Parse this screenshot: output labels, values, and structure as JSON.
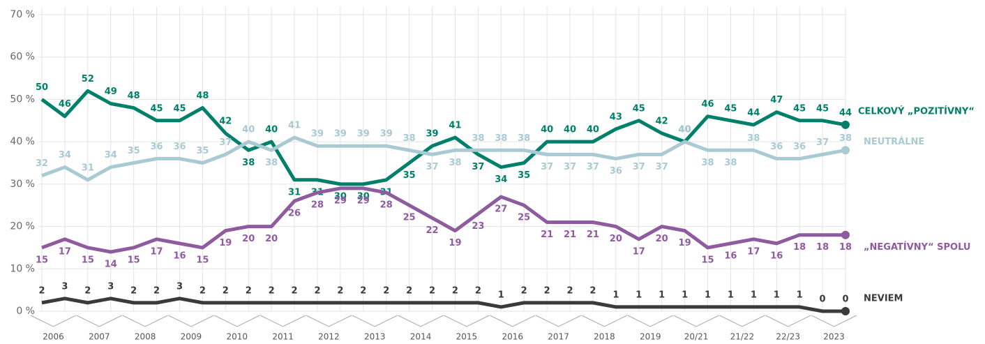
{
  "chart_data": {
    "type": "line",
    "categories": [
      "2006",
      null,
      "2007",
      null,
      "2008",
      null,
      "2009",
      null,
      "2010",
      null,
      "2011",
      null,
      "2012",
      null,
      "2013",
      null,
      "2014",
      null,
      "2015",
      null,
      "2016",
      null,
      "2017",
      null,
      "2018",
      null,
      "2019",
      null,
      "20/21",
      null,
      "21/22",
      null,
      "22/23",
      null,
      "2023",
      null
    ],
    "ylim": [
      0,
      70
    ],
    "yticks": [
      {
        "value": 0,
        "label": "0 %"
      },
      {
        "value": 10,
        "label": "10 %"
      },
      {
        "value": 20,
        "label": "20 %"
      },
      {
        "value": 30,
        "label": "30 %"
      },
      {
        "value": 40,
        "label": "40 %"
      },
      {
        "value": 50,
        "label": "50 %"
      },
      {
        "value": 60,
        "label": "60 %"
      },
      {
        "value": 70,
        "label": "70 %"
      }
    ],
    "grid": true,
    "series": [
      {
        "name": "CELKOVÝ „POZITÍVNY“",
        "color": "#00806a",
        "values": [
          50,
          46,
          52,
          49,
          48,
          45,
          45,
          48,
          42,
          38,
          40,
          31,
          31,
          30,
          30,
          31,
          35,
          39,
          41,
          37,
          34,
          35,
          40,
          40,
          40,
          43,
          45,
          42,
          40,
          46,
          45,
          44,
          47,
          45,
          45,
          44
        ]
      },
      {
        "name": "NEUTRÁLNE",
        "color": "#a9cad3",
        "values": [
          32,
          34,
          31,
          34,
          35,
          36,
          36,
          35,
          37,
          40,
          38,
          41,
          39,
          39,
          39,
          39,
          38,
          37,
          38,
          38,
          38,
          38,
          37,
          37,
          37,
          36,
          37,
          37,
          40,
          38,
          38,
          38,
          36,
          36,
          37,
          38
        ]
      },
      {
        "name": "„NEGATÍVNY“ SPOLU",
        "color": "#8f5b9f",
        "values": [
          15,
          17,
          15,
          14,
          15,
          17,
          16,
          15,
          19,
          20,
          20,
          26,
          28,
          29,
          29,
          28,
          25,
          22,
          19,
          23,
          27,
          25,
          21,
          21,
          21,
          20,
          17,
          20,
          19,
          15,
          16,
          17,
          16,
          18,
          18,
          18
        ]
      },
      {
        "name": "NEVIEM",
        "color": "#3a3a3a",
        "values": [
          2,
          3,
          2,
          3,
          2,
          2,
          3,
          2,
          2,
          2,
          2,
          2,
          2,
          2,
          2,
          2,
          2,
          2,
          2,
          2,
          1,
          2,
          2,
          2,
          2,
          1,
          1,
          1,
          1,
          1,
          1,
          1,
          1,
          1,
          0,
          0
        ]
      }
    ]
  }
}
